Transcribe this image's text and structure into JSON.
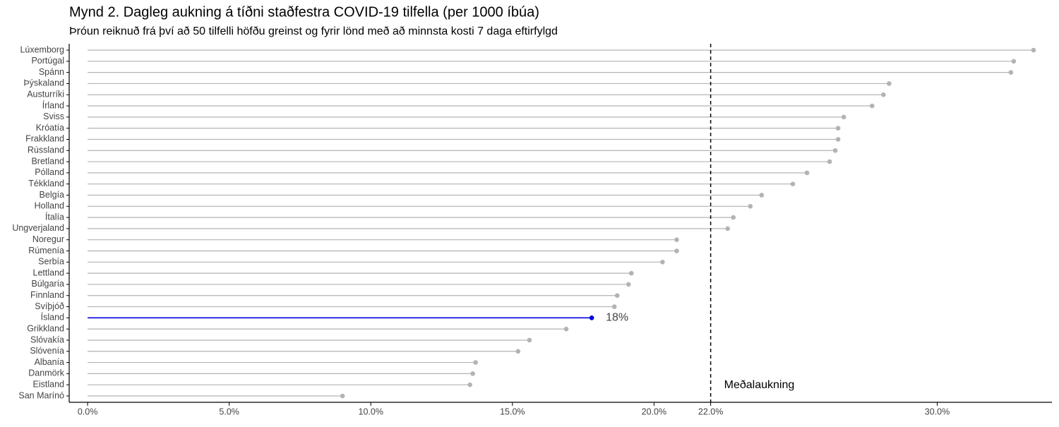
{
  "chart_data": {
    "type": "lollipop",
    "title": "Mynd 2. Dagleg aukning á tíðni staðfestra COVID-19 tilfella (per 1000 íbúa)",
    "subtitle": "Þróun reiknuð frá því að 50 tilfelli höfðu greinst og fyrir lönd með að minnsta kosti 7 daga eftirfylgd",
    "categories": [
      "Lúxemborg",
      "Portúgal",
      "Spánn",
      "Þýskaland",
      "Austurríki",
      "Írland",
      "Sviss",
      "Króatía",
      "Frakkland",
      "Rússland",
      "Bretland",
      "Pólland",
      "Tékkland",
      "Belgía",
      "Holland",
      "Ítalía",
      "Ungverjaland",
      "Noregur",
      "Rúmenía",
      "Serbía",
      "Lettland",
      "Búlgaría",
      "Finnland",
      "Svíþjóð",
      "Ísland",
      "Grikkland",
      "Slóvakía",
      "Slóvenía",
      "Albanía",
      "Danmörk",
      "Eistland",
      "San Marínó"
    ],
    "values": [
      33.4,
      32.7,
      32.6,
      28.3,
      28.1,
      27.7,
      26.7,
      26.5,
      26.5,
      26.4,
      26.2,
      25.4,
      24.9,
      23.8,
      23.4,
      22.8,
      22.6,
      20.8,
      20.8,
      20.3,
      19.2,
      19.1,
      18.7,
      18.6,
      17.8,
      16.9,
      15.6,
      15.2,
      13.7,
      13.6,
      13.5,
      9.0
    ],
    "value_labels": [
      null,
      null,
      null,
      null,
      null,
      null,
      null,
      null,
      null,
      null,
      null,
      null,
      null,
      null,
      null,
      null,
      null,
      null,
      null,
      null,
      null,
      null,
      null,
      null,
      "18%",
      null,
      null,
      null,
      null,
      null,
      null,
      null
    ],
    "colors": [
      "#b3b3b3",
      "#b3b3b3",
      "#b3b3b3",
      "#b3b3b3",
      "#b3b3b3",
      "#b3b3b3",
      "#b3b3b3",
      "#b3b3b3",
      "#b3b3b3",
      "#b3b3b3",
      "#b3b3b3",
      "#b3b3b3",
      "#b3b3b3",
      "#b3b3b3",
      "#b3b3b3",
      "#b3b3b3",
      "#b3b3b3",
      "#b3b3b3",
      "#b3b3b3",
      "#b3b3b3",
      "#b3b3b3",
      "#b3b3b3",
      "#b3b3b3",
      "#b3b3b3",
      "#0000dd",
      "#b3b3b3",
      "#b3b3b3",
      "#b3b3b3",
      "#b3b3b3",
      "#b3b3b3",
      "#b3b3b3",
      "#b3b3b3"
    ],
    "xlim": [
      -0.65,
      34.05
    ],
    "xticks": [
      {
        "value": 0,
        "label": "0.0%"
      },
      {
        "value": 5,
        "label": "5.0%"
      },
      {
        "value": 10,
        "label": "10.0%"
      },
      {
        "value": 15,
        "label": "15.0%"
      },
      {
        "value": 20,
        "label": "20.0%"
      },
      {
        "value": 22,
        "label": "22.0%"
      },
      {
        "value": 30,
        "label": "30.0%"
      }
    ],
    "reference_line": {
      "value": 22,
      "label": "Meðalaukning"
    }
  }
}
